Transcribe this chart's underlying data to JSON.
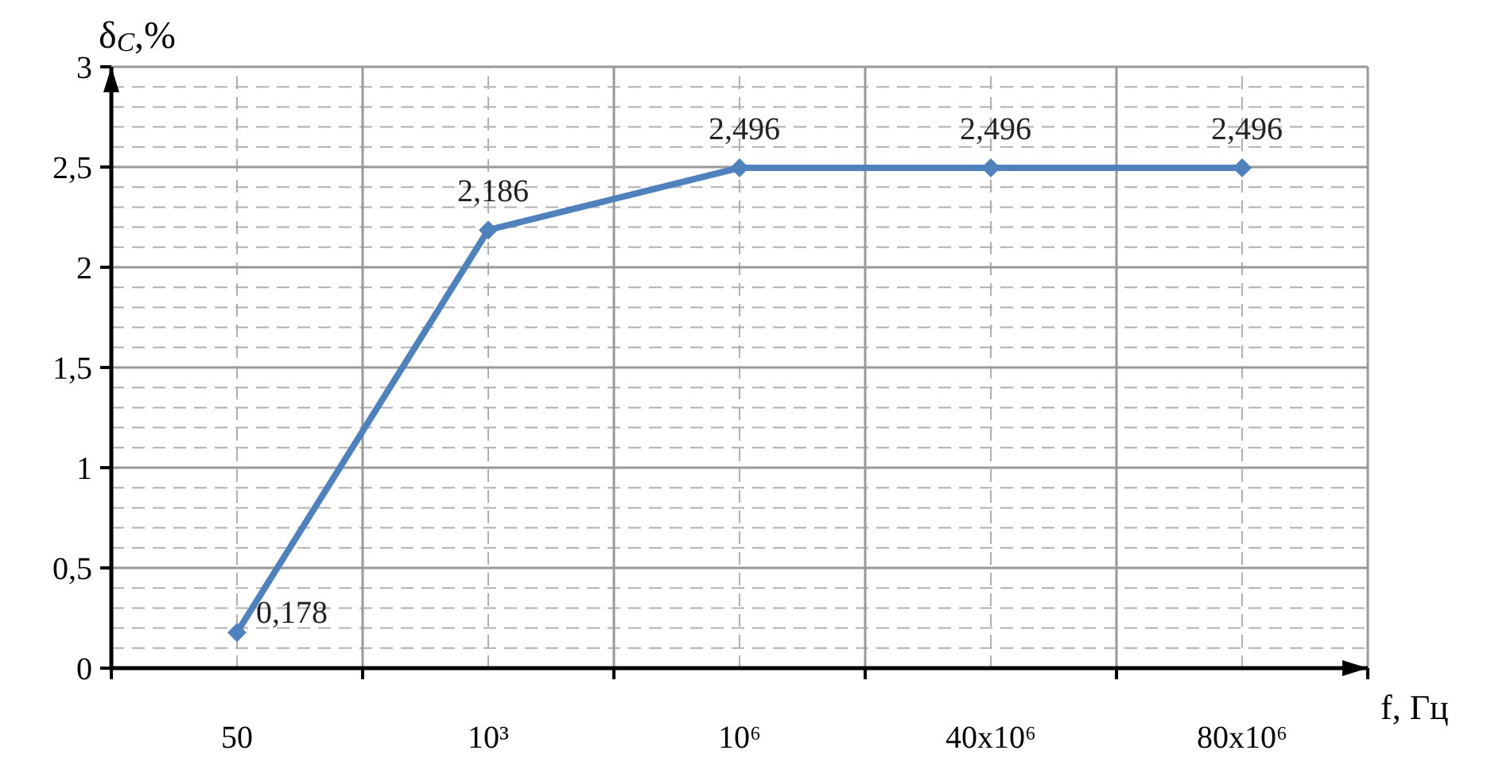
{
  "chart_data": {
    "type": "line",
    "xlabel": "f, Гц",
    "ylabel": "δ$_{C}$,%",
    "categories": [
      "50",
      "10³",
      "10⁶",
      "40x10⁶",
      "80x10⁶"
    ],
    "series": [
      {
        "color": "#4f81bd",
        "values": [
          0.178,
          2.186,
          2.496,
          2.496,
          2.496
        ],
        "value_labels": [
          "0,178",
          "2,186",
          "2,496",
          "2,496",
          "2,496"
        ]
      }
    ],
    "ylim": [
      0,
      3
    ],
    "yticks": [
      0,
      {
        "value": 0.5,
        "label": "0,5"
      },
      1,
      {
        "value": 1.5,
        "label": "1,5"
      },
      2,
      {
        "value": 2.5,
        "label": "2,5"
      },
      3
    ],
    "grid": true,
    "marker": "diamond",
    "line_style": "solid"
  }
}
